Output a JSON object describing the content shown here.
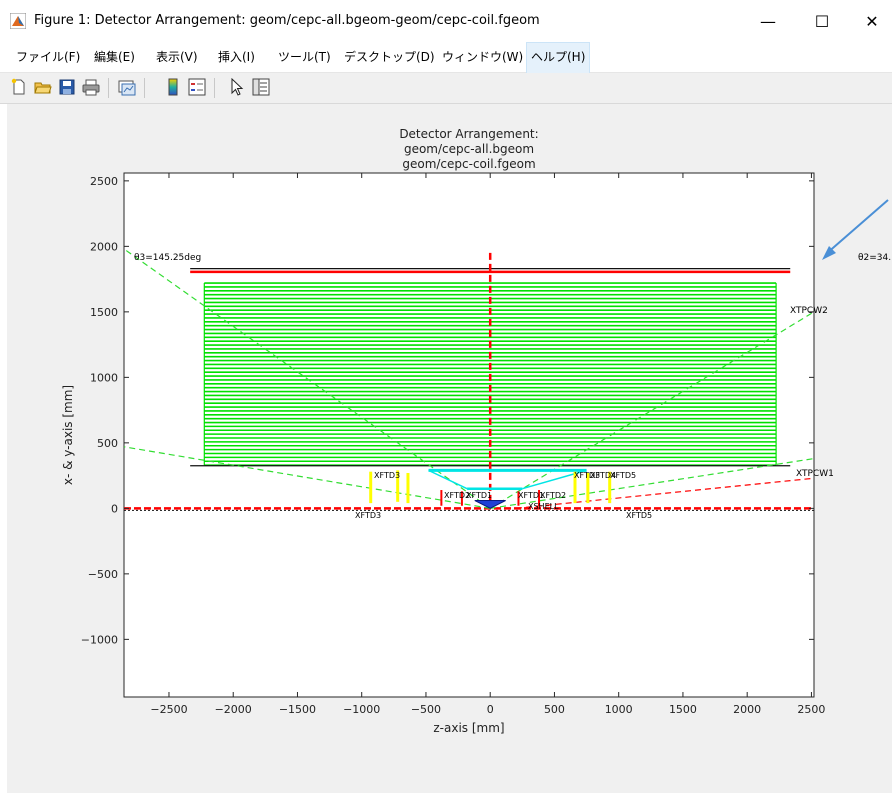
{
  "window": {
    "title": "Figure 1: Detector Arrangement: geom/cepc-all.bgeom-geom/cepc-coil.fgeom",
    "minimize": "—",
    "maximize": "☐",
    "close": "✕"
  },
  "menubar": {
    "items": [
      {
        "label": "ファイル(F)"
      },
      {
        "label": "編集(E)"
      },
      {
        "label": "表示(V)"
      },
      {
        "label": "挿入(I)"
      },
      {
        "label": "ツール(T)"
      },
      {
        "label": "デスクトップ(D)"
      },
      {
        "label": "ウィンドウ(W)"
      },
      {
        "label": "ヘルプ(H)"
      }
    ]
  },
  "toolbar": {
    "icons": [
      "new-figure-icon",
      "open-file-icon",
      "save-icon",
      "print-icon",
      "link-plot-icon",
      "colorbar-icon",
      "legend-icon",
      "pointer-icon",
      "property-editor-icon"
    ]
  },
  "chart_data": {
    "type": "line",
    "title": [
      "Detector Arrangement:",
      "geom/cepc-all.bgeom",
      "geom/cepc-coil.fgeom"
    ],
    "xlabel": "z-axis [mm]",
    "ylabel": "x- & y-axis [mm]",
    "xlim": [
      -2850,
      2520
    ],
    "ylim": [
      -1440,
      2560
    ],
    "xticks": [
      -2500,
      -2000,
      -1500,
      -1000,
      -500,
      0,
      500,
      1000,
      1500,
      2000,
      2500
    ],
    "yticks": [
      -1000,
      -500,
      0,
      500,
      1000,
      1500,
      2000,
      2500
    ],
    "xticklabels": [
      "−2500",
      "−2000",
      "−1500",
      "−1000",
      "−500",
      "0",
      "500",
      "1000",
      "1500",
      "2000",
      "2500"
    ],
    "yticklabels": [
      "−1000",
      "−500",
      "0",
      "500",
      "1000",
      "1500",
      "2000",
      "2500"
    ],
    "green_layers": {
      "z_min": -2225,
      "z_max": 2225,
      "r_min": 330,
      "r_max": 1720,
      "count": 48,
      "color": "#00e000"
    },
    "tpc_walls": {
      "z_min": -2335,
      "z_max": 2335,
      "r_inner": 325,
      "r_outer": 1830
    },
    "annotations": [
      {
        "text": "θ3=145.25deg"
      },
      {
        "text": "θ2=34."
      },
      {
        "text": "XTPCW1"
      },
      {
        "text": "XTPCW2"
      },
      {
        "text": "XFTD3"
      },
      {
        "text": "XFTD5"
      },
      {
        "text": "XFTD3"
      },
      {
        "text": "XFTD2"
      },
      {
        "text": "XSHELL"
      },
      {
        "text": "XFTD3"
      },
      {
        "text": "XFTD4"
      },
      {
        "text": "XFTD5"
      },
      {
        "text": "XFTD1"
      },
      {
        "text": "XFTD2"
      },
      {
        "text": "XFTD1"
      }
    ],
    "colors": {
      "green": "#00e000",
      "red": "#ff0000",
      "dashed_green": "#33dd33",
      "yellow": "#ffff00",
      "cyan": "#00e5e5",
      "arrow": "#4a8fd6"
    }
  }
}
